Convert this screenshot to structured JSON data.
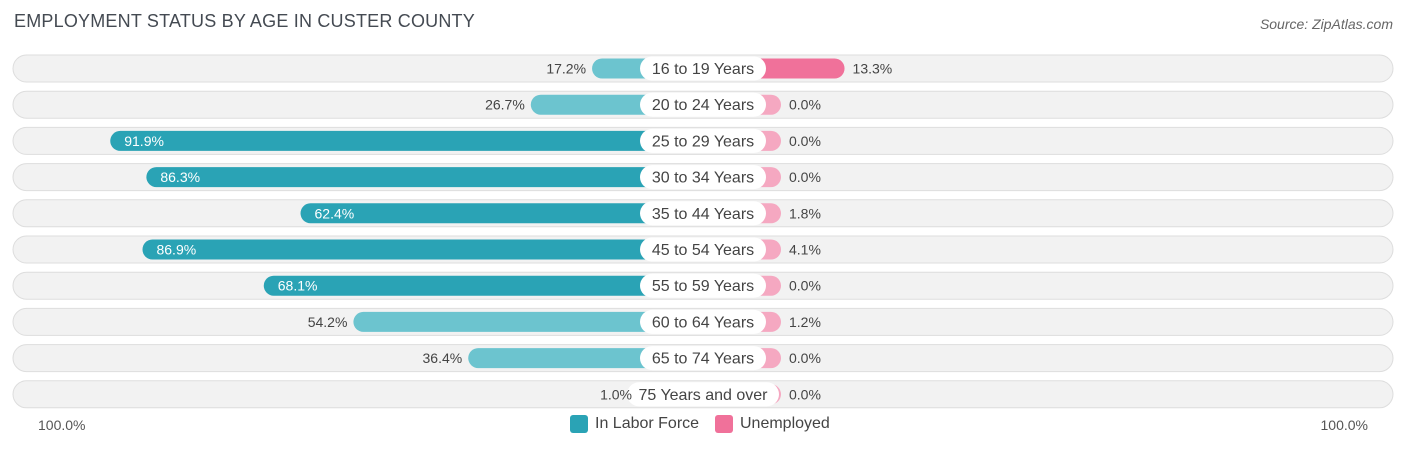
{
  "title": "EMPLOYMENT STATUS BY AGE IN CUSTER COUNTY",
  "source": "Source: ZipAtlas.com",
  "axis": {
    "left_label": "100.0%",
    "right_label": "100.0%"
  },
  "colors": {
    "labor_dark": "#2aa3b5",
    "labor_light": "#6cc4cf",
    "unemployed_dark": "#f0719a",
    "unemployed_light": "#f5a8c1",
    "row_bg": "#f2f2f2",
    "row_border": "#dddddd"
  },
  "legend": [
    {
      "name": "In Labor Force",
      "color": "#2aa3b5"
    },
    {
      "name": "Unemployed",
      "color": "#f0719a"
    }
  ],
  "chart_data": {
    "type": "bar",
    "orientation": "horizontal-diverging",
    "title": "EMPLOYMENT STATUS BY AGE IN CUSTER COUNTY",
    "xlim": [
      -100,
      100
    ],
    "categories": [
      "16 to 19 Years",
      "20 to 24 Years",
      "25 to 29 Years",
      "30 to 34 Years",
      "35 to 44 Years",
      "45 to 54 Years",
      "55 to 59 Years",
      "60 to 64 Years",
      "65 to 74 Years",
      "75 Years and over"
    ],
    "series": [
      {
        "name": "In Labor Force",
        "values": [
          17.2,
          26.7,
          91.9,
          86.3,
          62.4,
          86.9,
          68.1,
          54.2,
          36.4,
          1.0
        ],
        "labels": [
          "17.2%",
          "26.7%",
          "91.9%",
          "86.3%",
          "62.4%",
          "86.9%",
          "68.1%",
          "54.2%",
          "36.4%",
          "1.0%"
        ]
      },
      {
        "name": "Unemployed",
        "values": [
          13.3,
          0.0,
          0.0,
          0.0,
          1.8,
          4.1,
          0.0,
          1.2,
          0.0,
          0.0
        ],
        "labels": [
          "13.3%",
          "0.0%",
          "0.0%",
          "0.0%",
          "1.8%",
          "4.1%",
          "0.0%",
          "1.2%",
          "0.0%",
          "0.0%"
        ]
      }
    ],
    "legend_position": "bottom-center"
  }
}
